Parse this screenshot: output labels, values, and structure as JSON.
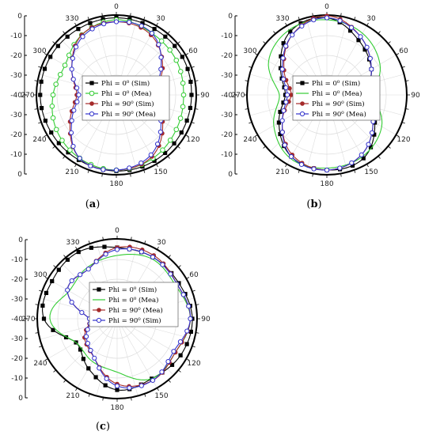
{
  "colors": {
    "sim0": "#000000",
    "mea0": "#33cc33",
    "sim90": "#a52a2a",
    "mea90": "#3333cc",
    "grid": "#dddddd"
  },
  "chart_data": [
    {
      "type": "polar",
      "panel": "(a)",
      "panel_label": {
        "open": "(",
        "letter": "a",
        "close": ")"
      },
      "rlim": [
        -40,
        0
      ],
      "radial_ticks": [
        0,
        -10,
        -20,
        -30,
        -40
      ],
      "angle_ticks": [
        0,
        30,
        60,
        90,
        120,
        150,
        180,
        210,
        240,
        270,
        300,
        330
      ],
      "grid": true,
      "legend": "center",
      "series": [
        {
          "name": "Phi = 0⁰ (Sim)",
          "marker": "square",
          "color": "#000000",
          "theta": [
            0,
            30,
            60,
            90,
            120,
            150,
            180,
            210,
            240,
            270,
            300,
            330
          ],
          "r": [
            -1,
            -1.5,
            -1.5,
            -2,
            -2,
            -1.5,
            -1.5,
            -2,
            -2,
            -1.5,
            -1.5,
            -1.5
          ]
        },
        {
          "name": "Phi = 0⁰ (Mea)",
          "marker": "circle-open",
          "color": "#33cc33",
          "theta": [
            0,
            30,
            60,
            90,
            120,
            150,
            180,
            210,
            240,
            270,
            300,
            330
          ],
          "r": [
            -2,
            -4,
            -5,
            -6,
            -5,
            -3,
            -2,
            -3,
            -5,
            -8,
            -10,
            -5
          ]
        },
        {
          "name": "Phi = 90⁰ (Sim)",
          "marker": "circle",
          "color": "#a52a2a",
          "theta": [
            0,
            30,
            60,
            90,
            120,
            150,
            180,
            210,
            240,
            270,
            300,
            330
          ],
          "r": [
            -3,
            -5,
            -13,
            -22,
            -13,
            -4,
            -2,
            -3,
            -13,
            -20,
            -14,
            -5
          ]
        },
        {
          "name": "Phi = 90⁰ (Mea)",
          "marker": "diamond-open",
          "color": "#3333cc",
          "theta": [
            0,
            30,
            60,
            90,
            120,
            150,
            180,
            210,
            240,
            270,
            300,
            330
          ],
          "r": [
            -3,
            -4,
            -14,
            -22,
            -14,
            -5,
            -2,
            -3,
            -14,
            -21,
            -14,
            -6
          ]
        }
      ]
    },
    {
      "type": "polar",
      "panel": "(b)",
      "panel_label": {
        "open": "(",
        "letter": "b",
        "close": ")"
      },
      "rlim": [
        -40,
        0
      ],
      "radial_ticks": [
        0,
        -10,
        -20,
        -30,
        -40
      ],
      "angle_ticks": [
        0,
        30,
        60,
        90,
        120,
        150,
        180,
        210,
        240,
        270,
        300,
        330
      ],
      "grid": true,
      "legend": "center",
      "series": [
        {
          "name": "Phi = 0⁰ (Sim)",
          "marker": "square",
          "color": "#000000",
          "theta": [
            0,
            30,
            60,
            90,
            120,
            150,
            180,
            210,
            240,
            270,
            300,
            330
          ],
          "r": [
            -1,
            -8,
            -14,
            -20,
            -12,
            -3,
            -2,
            -4,
            -12,
            -19,
            -13,
            -3
          ]
        },
        {
          "name": "Phi = 0⁰ (Mea)",
          "marker": "none",
          "color": "#33cc33",
          "theta": [
            0,
            30,
            60,
            90,
            120,
            150,
            180,
            210,
            240,
            270,
            300,
            330
          ],
          "r": [
            -2,
            -4,
            -9,
            -16,
            -8,
            -4,
            -3,
            -3,
            -9,
            -16,
            -6,
            -2
          ]
        },
        {
          "name": "Phi = 90⁰ (Sim)",
          "marker": "circle",
          "color": "#a52a2a",
          "theta": [
            0,
            30,
            60,
            90,
            120,
            150,
            180,
            210,
            240,
            270,
            300,
            330
          ],
          "r": [
            0,
            -6,
            -14,
            -20,
            -13,
            -5,
            -2,
            -5,
            -14,
            -22,
            -15,
            -5
          ]
        },
        {
          "name": "Phi = 90⁰ (Mea)",
          "marker": "diamond-open",
          "color": "#3333cc",
          "theta": [
            0,
            30,
            60,
            90,
            120,
            150,
            180,
            210,
            240,
            270,
            300,
            330
          ],
          "r": [
            -1,
            -6,
            -14,
            -20,
            -13,
            -5,
            -2,
            -4,
            -14,
            -20,
            -14,
            -5
          ]
        }
      ]
    },
    {
      "type": "polar",
      "panel": "(c)",
      "panel_label": {
        "open": "(",
        "letter": "c",
        "close": ")"
      },
      "rlim": [
        -40,
        0
      ],
      "radial_ticks": [
        0,
        -10,
        -20,
        -30,
        -40
      ],
      "angle_ticks": [
        0,
        30,
        60,
        90,
        120,
        150,
        180,
        210,
        240,
        270,
        300,
        330
      ],
      "grid": true,
      "legend": "center",
      "series": [
        {
          "name": "Phi = 0⁰ (Sim)",
          "marker": "square",
          "color": "#000000",
          "theta": [
            0,
            30,
            60,
            90,
            120,
            150,
            180,
            210,
            240,
            270,
            300,
            330
          ],
          "r": [
            -4,
            -4,
            -4,
            -2,
            -3,
            -5,
            -4,
            -11,
            -16,
            -3,
            -2,
            -1
          ]
        },
        {
          "name": "Phi = 0⁰ (Mea)",
          "marker": "none",
          "color": "#33cc33",
          "theta": [
            0,
            30,
            60,
            90,
            120,
            150,
            180,
            210,
            240,
            270,
            300,
            330
          ],
          "r": [
            -8,
            -5,
            -6,
            -3,
            -6,
            -5,
            -13,
            -15,
            -16,
            -6,
            -12,
            -10
          ]
        },
        {
          "name": "Phi = 90⁰ (Mea)",
          "marker": "circle",
          "color": "#a52a2a",
          "theta": [
            0,
            30,
            60,
            90,
            120,
            150,
            180,
            210,
            240,
            270,
            300,
            330
          ],
          "r": [
            -4,
            -3,
            -5,
            -3,
            -6,
            -4,
            -7,
            -17,
            -21,
            -26,
            -11,
            -11
          ]
        },
        {
          "name": "Phi = 90⁰ (Sim)",
          "marker": "diamond-open",
          "color": "#3333cc",
          "theta": [
            0,
            30,
            60,
            90,
            120,
            150,
            180,
            210,
            240,
            270,
            300,
            330
          ],
          "r": [
            -5,
            -4,
            -5,
            -3,
            -7,
            -4,
            -6,
            -17,
            -22,
            -26,
            -11,
            -11
          ]
        }
      ]
    }
  ]
}
